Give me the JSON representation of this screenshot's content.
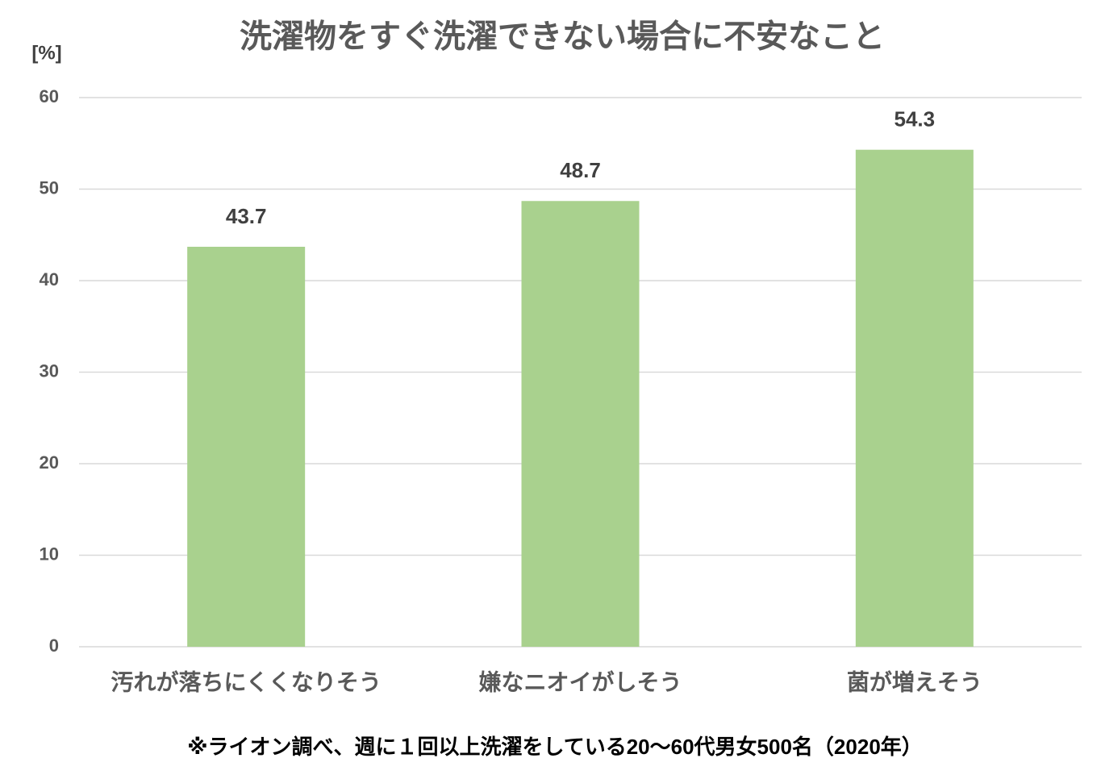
{
  "chart_data": {
    "type": "bar",
    "title": "洗濯物をすぐ洗濯できない場合に不安なこと",
    "y_label": "[%]",
    "categories": [
      "汚れが落ちにくくなりそう",
      "嫌なニオイがしそう",
      "菌が増えそう"
    ],
    "values": [
      43.7,
      48.7,
      54.3
    ],
    "color": "#a9d18e",
    "ylim": [
      0,
      60
    ],
    "yticks": [
      0,
      10,
      20,
      30,
      40,
      50,
      60
    ],
    "grid": true,
    "footnote": "※ライオン調べ、週に１回以上洗濯をしている20～60代男女500名（2020年）"
  }
}
